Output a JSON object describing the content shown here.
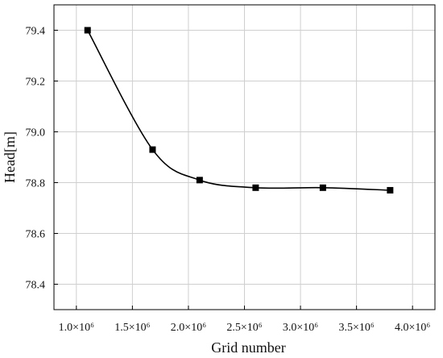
{
  "chart_data": {
    "type": "line",
    "title": "",
    "xlabel": "Grid number",
    "ylabel": "Head[m]",
    "xlim": [
      0.8,
      4.2
    ],
    "ylim": [
      78.3,
      79.5
    ],
    "x_scale_factor": "×10⁶",
    "x_ticks": [
      1.0,
      1.5,
      2.0,
      2.5,
      3.0,
      3.5,
      4.0
    ],
    "x_tick_labels": [
      "1.0×10⁶",
      "1.5×10⁶",
      "2.0×10⁶",
      "2.5×10⁶",
      "3.0×10⁶",
      "3.5×10⁶",
      "4.0×10⁶"
    ],
    "y_ticks": [
      78.4,
      78.6,
      78.8,
      79.0,
      79.2,
      79.4
    ],
    "y_tick_labels": [
      "78.4",
      "78.6",
      "78.8",
      "79.0",
      "79.2",
      "79.4"
    ],
    "grid": true,
    "line_color": "#000000",
    "marker": "square",
    "series": [
      {
        "x": [
          1.1,
          1.68,
          2.1,
          2.6,
          3.2,
          3.8
        ],
        "y": [
          79.4,
          78.93,
          78.81,
          78.78,
          78.78,
          78.77
        ]
      }
    ]
  }
}
